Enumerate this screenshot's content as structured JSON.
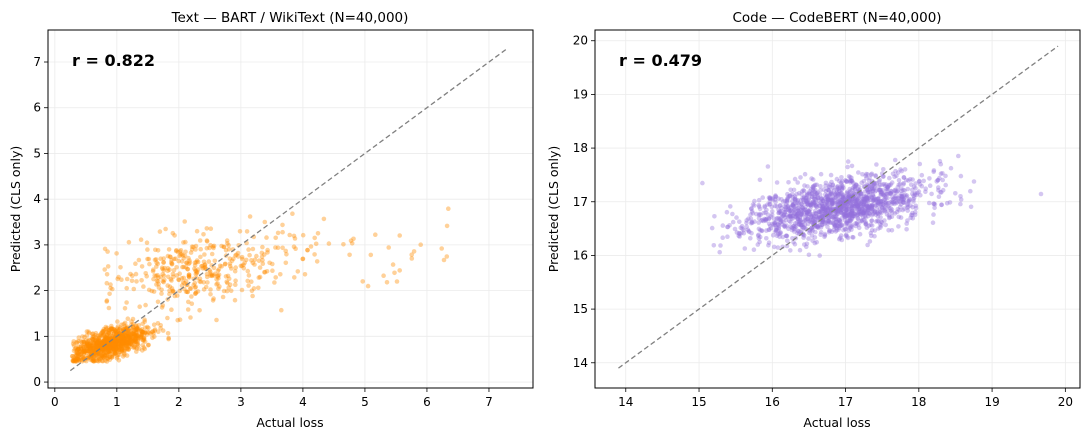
{
  "chart_data": [
    {
      "type": "scatter",
      "title": "Text — BART / WikiText (N=40,000)",
      "xlabel": "Actual loss",
      "ylabel": "Predicted (CLS only)",
      "annotation": "r = 0.822",
      "xlim": [
        -0.11,
        7.71
      ],
      "ylim": [
        -0.13,
        7.7
      ],
      "xticks": [
        0,
        1,
        2,
        3,
        4,
        5,
        6,
        7
      ],
      "yticks": [
        0,
        1,
        2,
        3,
        4,
        5,
        6,
        7
      ],
      "grid": true,
      "color": "#ff8c00",
      "alpha": 0.4,
      "reference_line": {
        "style": "dashed",
        "color": "#808080",
        "from": [
          0.25,
          0.25
        ],
        "to": [
          7.3,
          7.3
        ]
      },
      "point_distribution": [
        {
          "n": 900,
          "mean": [
            0.9,
            0.85
          ],
          "sd": [
            0.3,
            0.2
          ],
          "rho": 0.55,
          "xmin": 0.28,
          "ymin": 0.45
        },
        {
          "n": 380,
          "mean": [
            2.3,
            2.45
          ],
          "sd": [
            0.75,
            0.42
          ],
          "rho": 0.3,
          "xmin": 0.8,
          "ymin": 0.6
        },
        {
          "n": 45,
          "uniform_x": [
            3.5,
            6.4
          ],
          "mean_y": 2.85,
          "sd_y": 0.35
        }
      ],
      "seed": 7
    },
    {
      "type": "scatter",
      "title": "Code — CodeBERT (N=40,000)",
      "xlabel": "Actual loss",
      "ylabel": "Predicted (CLS only)",
      "annotation": "r = 0.479",
      "xlim": [
        13.58,
        20.2
      ],
      "ylim": [
        13.53,
        20.2
      ],
      "xticks": [
        14,
        15,
        16,
        17,
        18,
        19,
        20
      ],
      "yticks": [
        14,
        15,
        16,
        17,
        18,
        19,
        20
      ],
      "grid": true,
      "color": "#9370db",
      "alpha": 0.4,
      "reference_line": {
        "style": "dashed",
        "color": "#808080",
        "from": [
          13.9,
          13.9
        ],
        "to": [
          19.9,
          19.9
        ]
      },
      "point_distribution": [
        {
          "n": 1500,
          "mean": [
            16.9,
            16.9
          ],
          "sd": [
            0.6,
            0.3
          ],
          "rho": 0.479,
          "xmin": 13.85,
          "ymin": 15.7
        }
      ],
      "seed": 11
    }
  ]
}
